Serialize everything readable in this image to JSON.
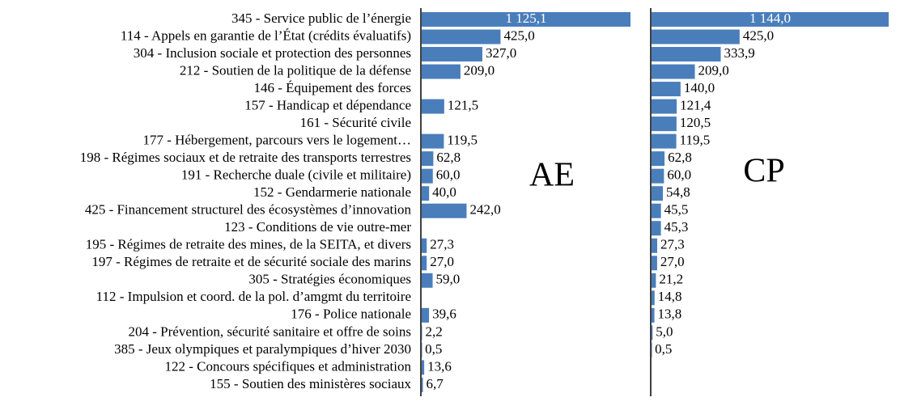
{
  "chart_data": {
    "type": "bar",
    "orientation": "horizontal",
    "categories": [
      "345 - Service public de l’énergie",
      "114 - Appels en garantie de l’État (crédits évaluatifs)",
      "304 - Inclusion sociale et protection des personnes",
      "212 - Soutien de la politique de la défense",
      "146 - Équipement des forces",
      "157 - Handicap et dépendance",
      "161 - Sécurité civile",
      "177 - Hébergement, parcours vers le logement…",
      "198 - Régimes sociaux et de retraite des transports terrestres",
      "191 - Recherche duale (civile et militaire)",
      "152 - Gendarmerie nationale",
      "425 - Financement structurel des écosystèmes d’innovation",
      "123 - Conditions de vie outre-mer",
      "195 - Régimes de retraite des mines, de la SEITA, et divers",
      "197 - Régimes de retraite et de sécurité sociale des marins",
      "305 - Stratégies économiques",
      "112 - Impulsion et coord. de la pol. d’amgmt du territoire",
      "176 - Police nationale",
      "204 - Prévention, sécurité sanitaire et offre de soins",
      "385 - Jeux olympiques et paralympiques d’hiver 2030",
      "122 - Concours spécifiques et administration",
      "155 - Soutien des ministères sociaux"
    ],
    "series": [
      {
        "name": "AE",
        "color": "#4a7ebb",
        "values": [
          1125.1,
          425.0,
          327.0,
          209.0,
          null,
          121.5,
          null,
          119.5,
          62.8,
          60.0,
          40.0,
          242.0,
          null,
          27.3,
          27.0,
          59.0,
          null,
          39.6,
          2.2,
          0.5,
          13.6,
          6.7
        ],
        "value_labels": [
          "1 125,1",
          "425,0",
          "327,0",
          "209,0",
          null,
          "121,5",
          null,
          "119,5",
          "62,8",
          "60,0",
          "40,0",
          "242,0",
          null,
          "27,3",
          "27,0",
          "59,0",
          null,
          "39,6",
          "2,2",
          "0,5",
          "13,6",
          "6,7"
        ]
      },
      {
        "name": "CP",
        "color": "#4a7ebb",
        "values": [
          1144.0,
          425.0,
          333.9,
          209.0,
          140.0,
          121.4,
          120.5,
          119.5,
          62.8,
          60.0,
          54.8,
          45.5,
          45.3,
          27.3,
          27.0,
          21.2,
          14.8,
          13.8,
          5.0,
          0.5,
          null,
          null
        ],
        "value_labels": [
          "1 144,0",
          "425,0",
          "333,9",
          "209,0",
          "140,0",
          "121,4",
          "120,5",
          "119,5",
          "62,8",
          "60,0",
          "54,8",
          "45,5",
          "45,3",
          "27,3",
          "27,0",
          "21,2",
          "14,8",
          "13,8",
          "5,0",
          "0,5",
          null,
          null
        ]
      }
    ]
  }
}
